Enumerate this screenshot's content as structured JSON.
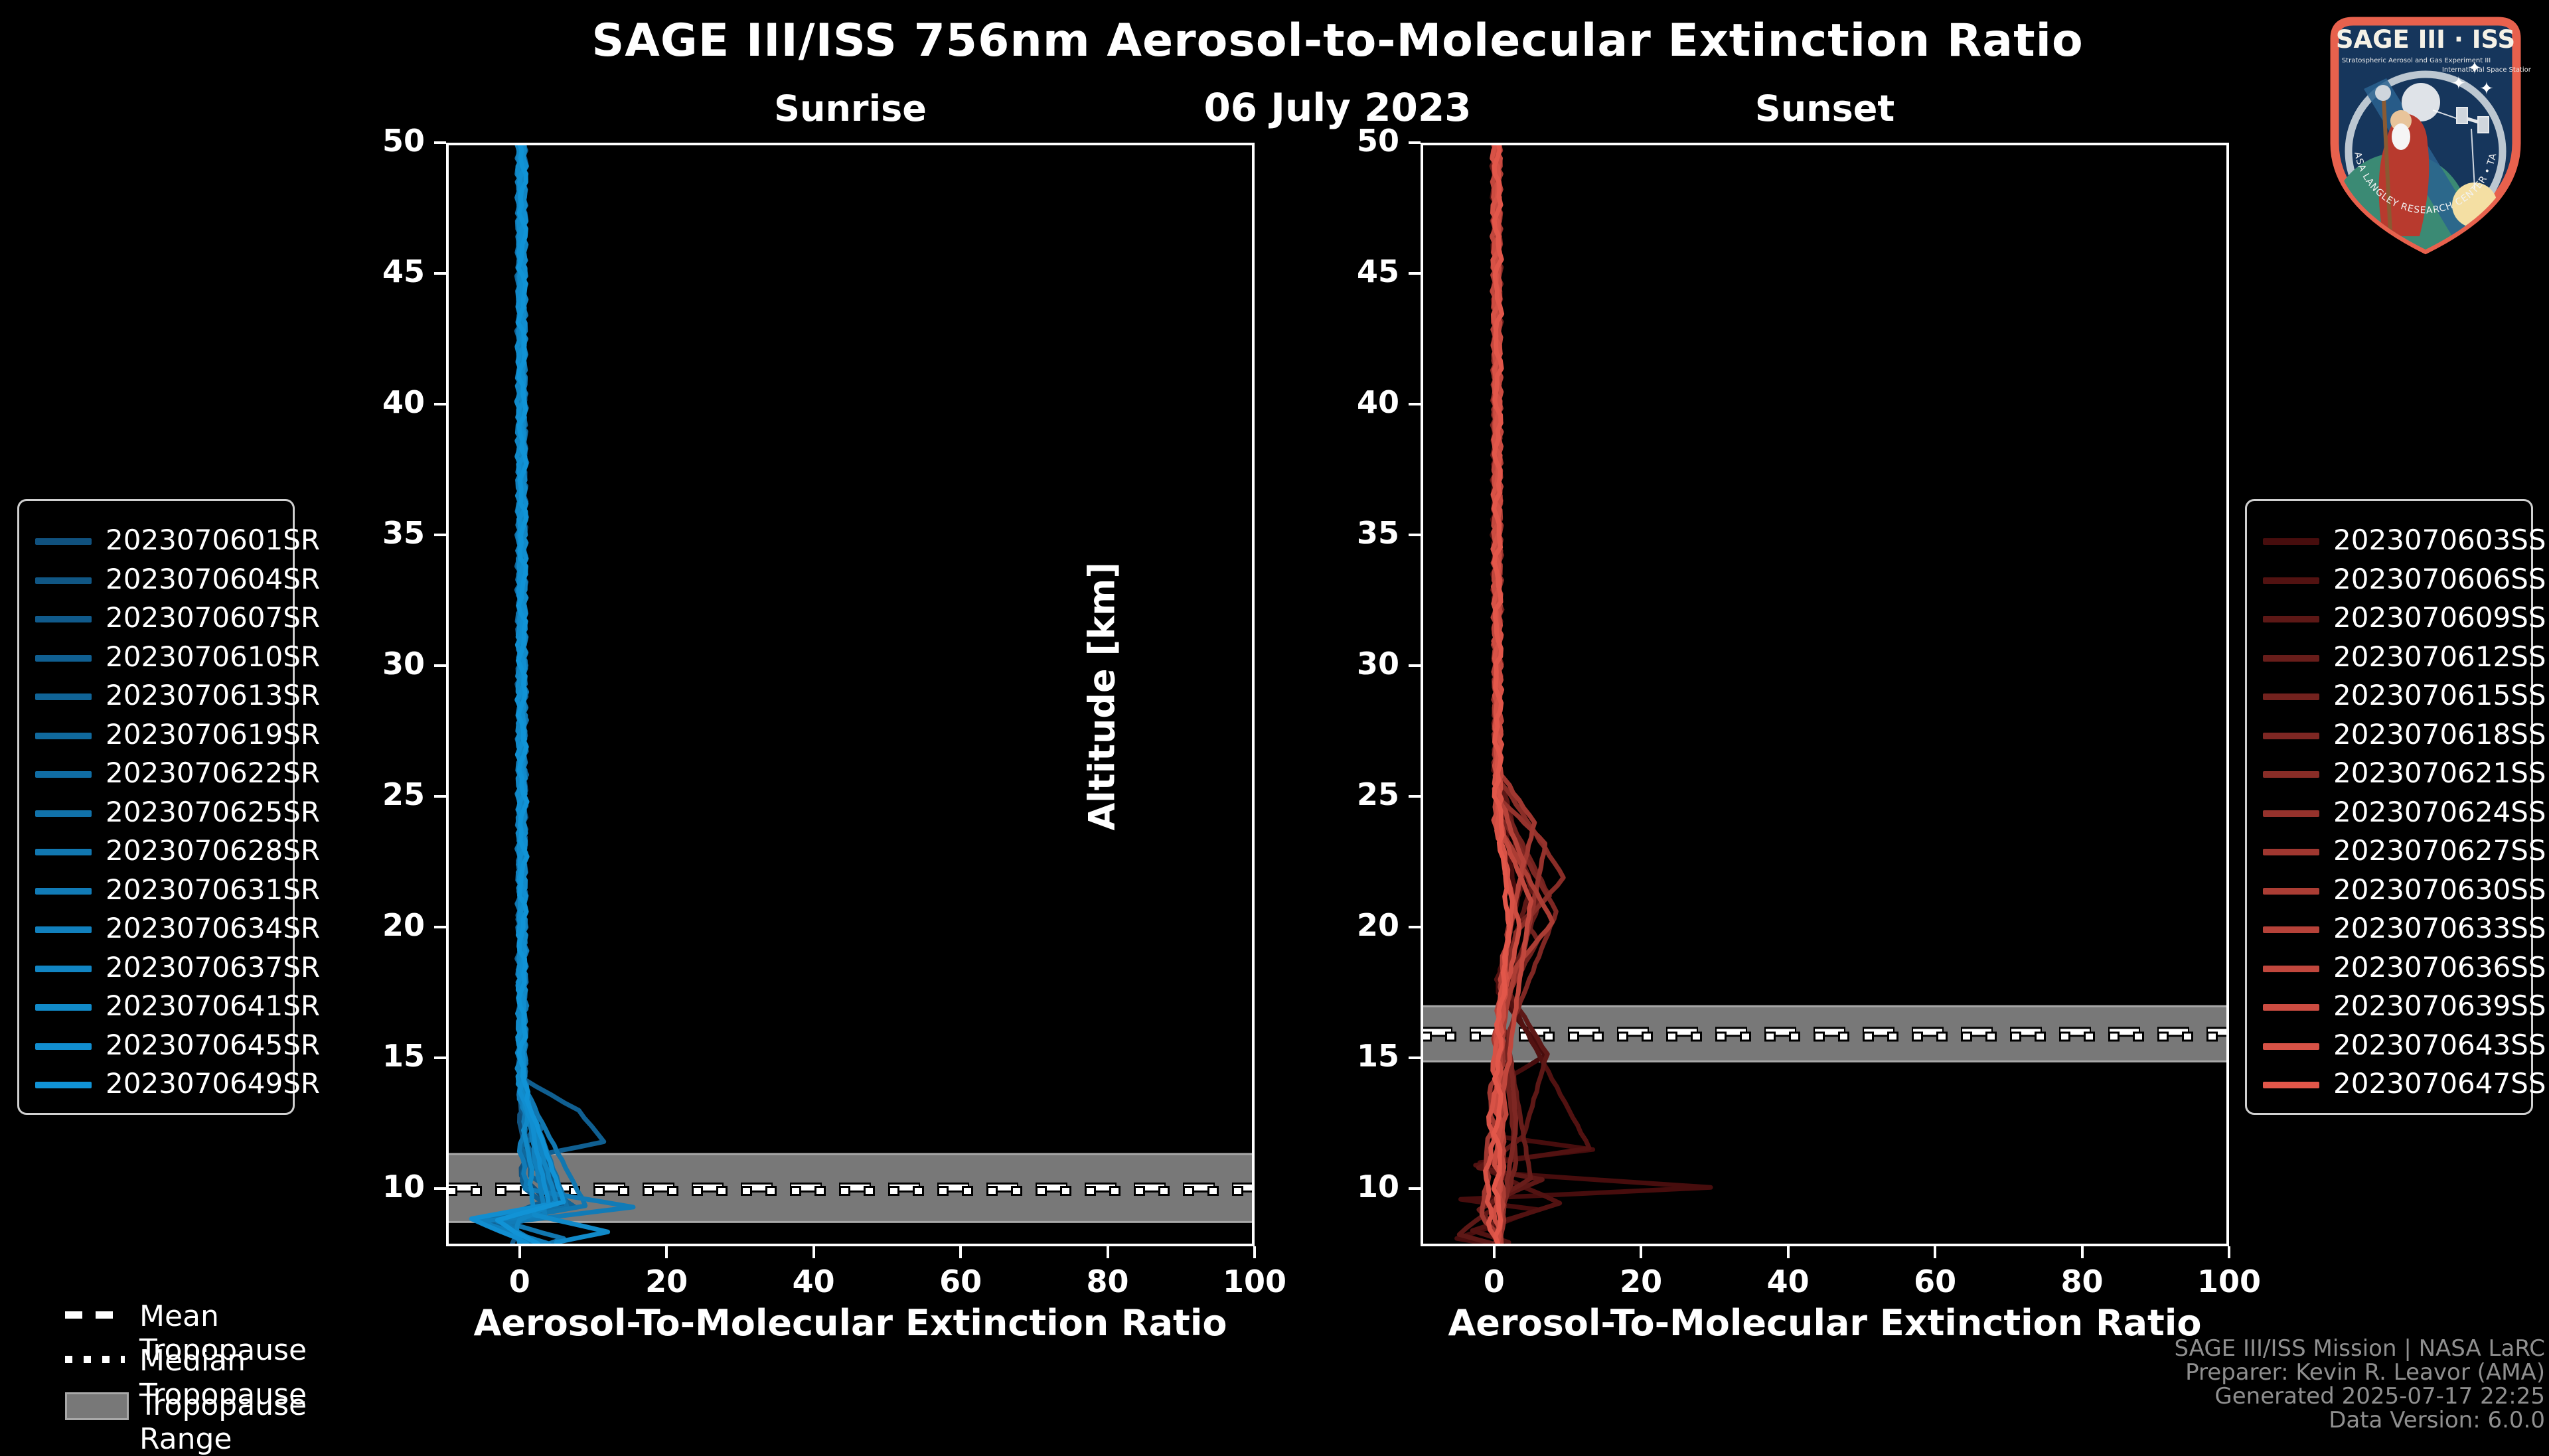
{
  "header": {
    "title": "SAGE III/ISS 756nm Aerosol-to-Molecular Extinction Ratio",
    "subtitle": "06 July 2023"
  },
  "footer": {
    "lines": [
      "SAGE III/ISS Mission | NASA LaRC",
      "Preparer: Kevin R. Leavor (AMA)",
      "Generated 2025-07-17 22:25",
      "Data Version: 6.0.0"
    ]
  },
  "trop_legend": {
    "mean": "Mean Tropopause",
    "median": "Median Tropopause",
    "range": "Tropopause Range"
  },
  "logo": {
    "title": "SAGE III · ISS",
    "subtitle_left": "Stratospheric Aerosol and Gas Experiment III",
    "subtitle_right": "International Space Station",
    "ring_text": "BALL • NASA LANGLEY RESEARCH CENTER • TAS-I • ESA",
    "border_color": "#e8614d",
    "field_color": "#16365c",
    "ring_color": "#bcc7d1"
  },
  "colors": {
    "axis": "#ffffff",
    "band_fill": "#787878",
    "band_edge": "#a8a8a8",
    "footer_text": "#8f8f8f"
  },
  "chart_data": [
    {
      "type": "line",
      "title": "Sunrise",
      "xlabel": "Aerosol-To-Molecular Extinction Ratio",
      "ylabel": "Altitude [km]",
      "xlim": [
        -10,
        100
      ],
      "ylim": [
        7.8,
        50
      ],
      "xticks": [
        0,
        20,
        40,
        60,
        80,
        100
      ],
      "yticks": [
        50,
        45,
        40,
        35,
        30,
        25,
        20,
        15,
        10
      ],
      "color_start": "#10517e",
      "color_end": "#1193d6",
      "tropopause": {
        "mean": 10.05,
        "median": 9.92,
        "range": [
          8.73,
          11.33
        ]
      },
      "series": [
        {
          "name": "2023070601SR",
          "anchors": [
            [
              0.3,
              50
            ],
            [
              0.3,
              14
            ],
            [
              0.5,
              10.5
            ],
            [
              4,
              9.4
            ],
            [
              -1,
              8.6
            ],
            [
              1,
              7.9
            ]
          ]
        },
        {
          "name": "2023070604SR",
          "anchors": [
            [
              0.2,
              50
            ],
            [
              0.3,
              14
            ],
            [
              5.5,
              9.3
            ],
            [
              -2,
              8.7
            ],
            [
              0.5,
              7.85
            ]
          ]
        },
        {
          "name": "2023070607SR",
          "anchors": [
            [
              0.4,
              50
            ],
            [
              0.3,
              13
            ],
            [
              2,
              12.5
            ],
            [
              0.4,
              11.5
            ],
            [
              6,
              9.35
            ],
            [
              -1,
              8.6
            ],
            [
              -1,
              7.9
            ]
          ]
        },
        {
          "name": "2023070610SR",
          "anchors": [
            [
              0.3,
              50
            ],
            [
              0.4,
              14.2
            ],
            [
              8,
              13.0
            ],
            [
              11.5,
              11.8
            ],
            [
              1,
              11.2
            ],
            [
              0.5,
              10
            ],
            [
              3,
              9.5
            ],
            [
              -3,
              8.8
            ],
            [
              2,
              8.0
            ]
          ]
        },
        {
          "name": "2023070613SR",
          "anchors": [
            [
              0.2,
              50
            ],
            [
              0.3,
              14
            ],
            [
              1.5,
              10.5
            ],
            [
              7.5,
              9.3
            ],
            [
              -4,
              8.75
            ],
            [
              3,
              7.9
            ]
          ]
        },
        {
          "name": "2023070619SR",
          "anchors": [
            [
              0.3,
              50
            ],
            [
              0.3,
              13
            ],
            [
              3,
              12.3
            ],
            [
              0.5,
              11.6
            ],
            [
              5,
              9.4
            ],
            [
              -2.5,
              8.8
            ],
            [
              1,
              7.9
            ]
          ]
        },
        {
          "name": "2023070622SR",
          "anchors": [
            [
              0.2,
              50
            ],
            [
              0.3,
              14
            ],
            [
              4.5,
              9.45
            ],
            [
              -1.5,
              8.65
            ],
            [
              0.8,
              7.9
            ]
          ]
        },
        {
          "name": "2023070625SR",
          "anchors": [
            [
              0.3,
              50
            ],
            [
              0.4,
              14
            ],
            [
              6.5,
              9.3
            ],
            [
              -6,
              8.8
            ],
            [
              2,
              7.95
            ]
          ]
        },
        {
          "name": "2023070628SR",
          "anchors": [
            [
              0.2,
              50
            ],
            [
              0.3,
              14
            ],
            [
              9,
              9.35
            ],
            [
              -3,
              8.75
            ],
            [
              6,
              8.1
            ],
            [
              4,
              7.9
            ]
          ]
        },
        {
          "name": "2023070631SR",
          "anchors": [
            [
              0.3,
              50
            ],
            [
              0.4,
              14
            ],
            [
              0.5,
              10
            ],
            [
              15.5,
              9.3
            ],
            [
              -2,
              8.7
            ],
            [
              1.5,
              7.9
            ]
          ]
        },
        {
          "name": "2023070634SR",
          "anchors": [
            [
              0.2,
              50
            ],
            [
              0.3,
              14
            ],
            [
              3.5,
              9.0
            ],
            [
              -5.5,
              8.75
            ],
            [
              4,
              7.9
            ]
          ]
        },
        {
          "name": "2023070637SR",
          "anchors": [
            [
              0.3,
              50
            ],
            [
              0.3,
              14
            ],
            [
              5,
              9.5
            ],
            [
              0,
              8.8
            ],
            [
              0,
              7.9
            ]
          ]
        },
        {
          "name": "2023070641SR",
          "anchors": [
            [
              0.2,
              50
            ],
            [
              0.3,
              14
            ],
            [
              2,
              9.0
            ],
            [
              12,
              8.35
            ],
            [
              5,
              7.95
            ]
          ]
        },
        {
          "name": "2023070645SR",
          "anchors": [
            [
              0.3,
              50
            ],
            [
              0.3,
              14
            ],
            [
              4,
              9.4
            ],
            [
              -6.5,
              8.85
            ],
            [
              1,
              7.9
            ]
          ]
        },
        {
          "name": "2023070649SR",
          "anchors": [
            [
              0.4,
              50
            ],
            [
              0.4,
              14
            ],
            [
              6,
              9.5
            ],
            [
              -3,
              8.8
            ],
            [
              2.5,
              7.9
            ]
          ]
        }
      ]
    },
    {
      "type": "line",
      "title": "Sunset",
      "xlabel": "Aerosol-To-Molecular Extinction Ratio",
      "ylabel": "Altitude [km]",
      "xlim": [
        -10,
        100
      ],
      "ylim": [
        7.8,
        50
      ],
      "xticks": [
        0,
        20,
        40,
        60,
        80,
        100
      ],
      "yticks": [
        50,
        45,
        40,
        35,
        30,
        25,
        20,
        15,
        10
      ],
      "color_start": "#470d0d",
      "color_end": "#e2574a",
      "tropopause": {
        "mean": 16.0,
        "median": 15.82,
        "range": [
          14.87,
          16.98
        ]
      },
      "series": [
        {
          "name": "2023070603SS",
          "anchors": [
            [
              0.3,
              50
            ],
            [
              0.4,
              26
            ],
            [
              3,
              21
            ],
            [
              0.5,
              17.5
            ],
            [
              7,
              15.1
            ],
            [
              0.5,
              14
            ],
            [
              0.5,
              12
            ],
            [
              13.5,
              11.5
            ],
            [
              -2,
              11.0
            ],
            [
              0.5,
              10.6
            ],
            [
              29.5,
              10.05
            ],
            [
              -4.5,
              9.6
            ],
            [
              6,
              9.2
            ],
            [
              0,
              8.6
            ],
            [
              -5,
              8.1
            ],
            [
              0,
              7.85
            ]
          ]
        },
        {
          "name": "2023070606SS",
          "anchors": [
            [
              0.3,
              50
            ],
            [
              0.4,
              26
            ],
            [
              4,
              22
            ],
            [
              0.6,
              18
            ],
            [
              13,
              11.55
            ],
            [
              -2.5,
              10.9
            ],
            [
              9,
              9.45
            ],
            [
              -3,
              8.4
            ],
            [
              2,
              7.95
            ]
          ]
        },
        {
          "name": "2023070609SS",
          "anchors": [
            [
              0.3,
              50
            ],
            [
              0.4,
              26
            ],
            [
              5,
              21.5
            ],
            [
              1,
              18
            ],
            [
              7.2,
              15.15
            ],
            [
              4,
              12
            ],
            [
              -2,
              10.8
            ],
            [
              6.5,
              10.35
            ],
            [
              2,
              9.8
            ],
            [
              -4.8,
              8.25
            ],
            [
              0.5,
              7.85
            ]
          ]
        },
        {
          "name": "2023070612SS",
          "anchors": [
            [
              0.3,
              50
            ],
            [
              0.5,
              25.5
            ],
            [
              6,
              20.8
            ],
            [
              1,
              17
            ],
            [
              5,
              10.4
            ],
            [
              -2,
              9.2
            ],
            [
              1,
              7.9
            ]
          ]
        },
        {
          "name": "2023070615SS",
          "anchors": [
            [
              0.4,
              50
            ],
            [
              0.5,
              25
            ],
            [
              7.5,
              21.2
            ],
            [
              4,
              20.3
            ],
            [
              6,
              19.5
            ],
            [
              1,
              17
            ],
            [
              3,
              11
            ],
            [
              0,
              7.9
            ]
          ]
        },
        {
          "name": "2023070618SS",
          "anchors": [
            [
              0.3,
              50
            ],
            [
              0.5,
              24.5
            ],
            [
              8.5,
              20.6
            ],
            [
              2,
              16
            ],
            [
              3,
              12.4
            ],
            [
              0.5,
              7.9
            ]
          ]
        },
        {
          "name": "2023070621SS",
          "anchors": [
            [
              0.4,
              50
            ],
            [
              0.5,
              25.8
            ],
            [
              9.5,
              21.9
            ],
            [
              3,
              19.8
            ],
            [
              1,
              17
            ],
            [
              1,
              7.9
            ]
          ]
        },
        {
          "name": "2023070624SS",
          "anchors": [
            [
              0.3,
              50
            ],
            [
              0.5,
              25
            ],
            [
              7,
              23.2
            ],
            [
              4,
              19
            ],
            [
              1,
              16.5
            ],
            [
              1,
              7.9
            ]
          ]
        },
        {
          "name": "2023070627SS",
          "anchors": [
            [
              0.4,
              50
            ],
            [
              0.5,
              26
            ],
            [
              5.5,
              24.0
            ],
            [
              2,
              20
            ],
            [
              0.5,
              16
            ],
            [
              -1.5,
              9
            ],
            [
              0.5,
              7.9
            ]
          ]
        },
        {
          "name": "2023070630SS",
          "anchors": [
            [
              0.3,
              50
            ],
            [
              0.5,
              24
            ],
            [
              8,
              20.2
            ],
            [
              3,
              18.5
            ],
            [
              1,
              16
            ],
            [
              1,
              7.9
            ]
          ]
        },
        {
          "name": "2023070633SS",
          "anchors": [
            [
              0.4,
              50
            ],
            [
              0.5,
              25
            ],
            [
              4,
              22.5
            ],
            [
              0.8,
              18
            ],
            [
              0.8,
              7.9
            ]
          ]
        },
        {
          "name": "2023070636SS",
          "anchors": [
            [
              0.3,
              50
            ],
            [
              0.5,
              24
            ],
            [
              5,
              21.0
            ],
            [
              1.5,
              14
            ],
            [
              0.5,
              7.9
            ]
          ]
        },
        {
          "name": "2023070639SS",
          "anchors": [
            [
              0.4,
              50
            ],
            [
              0.5,
              23.5
            ],
            [
              3.5,
              20.0
            ],
            [
              0.5,
              16
            ],
            [
              0.5,
              7.9
            ]
          ]
        },
        {
          "name": "2023070643SS",
          "anchors": [
            [
              0.3,
              50
            ],
            [
              0.5,
              24
            ],
            [
              2.5,
              21
            ],
            [
              0.5,
              16
            ],
            [
              -1,
              9.5
            ],
            [
              0.5,
              7.9
            ]
          ]
        },
        {
          "name": "2023070647SS",
          "anchors": [
            [
              0.5,
              50
            ],
            [
              0.5,
              25
            ],
            [
              2,
              20
            ],
            [
              0.6,
              16
            ],
            [
              0.5,
              7.9
            ]
          ]
        }
      ]
    }
  ]
}
